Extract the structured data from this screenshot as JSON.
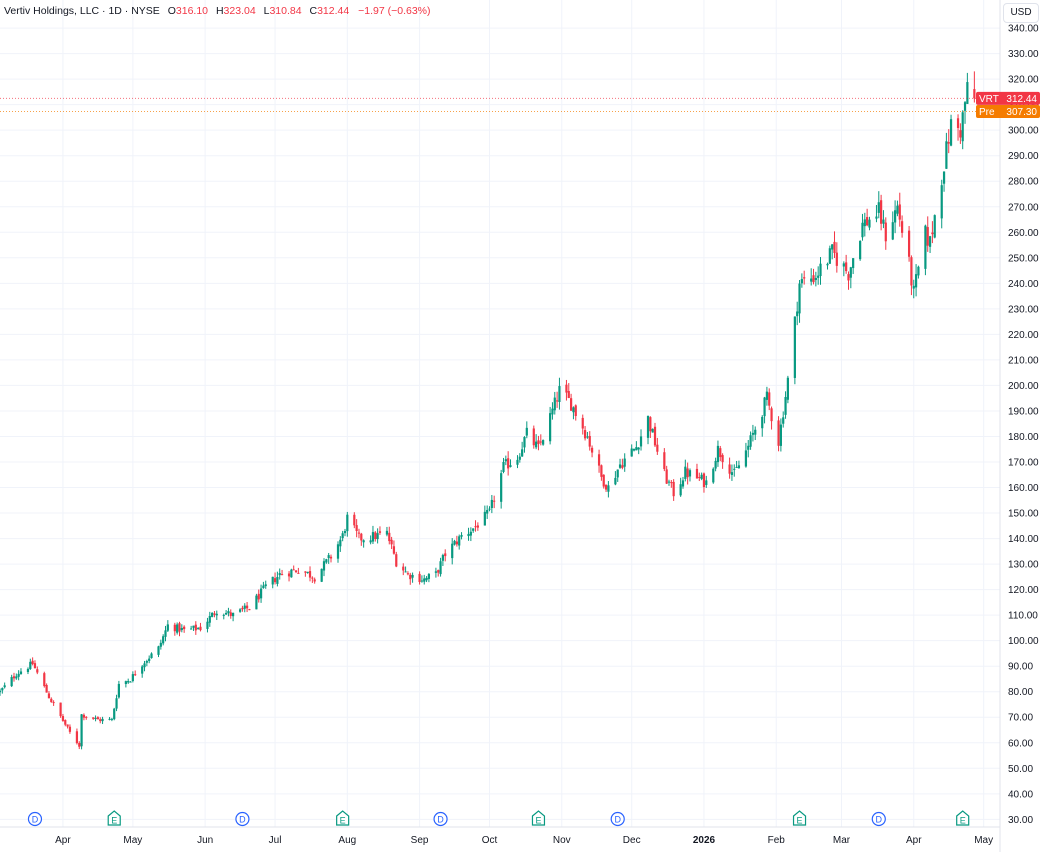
{
  "legend": {
    "title": "Vertiv Holdings, LLC · 1D · NYSE",
    "open_label": "O",
    "open": "316.10",
    "high_label": "H",
    "high": "323.04",
    "low_label": "L",
    "low": "310.84",
    "close_label": "C",
    "close": "312.44",
    "change": "−1.97 (−0.63%)"
  },
  "currency": "USD",
  "colors": {
    "up": "#089981",
    "down": "#f23645",
    "last": "#f23645",
    "pre": "#f57c00",
    "event": "#2962ff",
    "earnings": "#089981"
  },
  "price_tags": [
    {
      "label": "VRT",
      "value": "312.44",
      "color": "#f23645"
    },
    {
      "label": "Pre",
      "value": "307.30",
      "color": "#f57c00"
    }
  ],
  "events": [
    {
      "type": "D",
      "date": "2025-03-20"
    },
    {
      "type": "E",
      "date": "2025-04-23"
    },
    {
      "type": "D",
      "date": "2025-06-17"
    },
    {
      "type": "E",
      "date": "2025-07-30"
    },
    {
      "type": "D",
      "date": "2025-09-10"
    },
    {
      "type": "E",
      "date": "2025-10-22"
    },
    {
      "type": "D",
      "date": "2025-11-25"
    },
    {
      "type": "E",
      "date": "2026-02-11"
    },
    {
      "type": "D",
      "date": "2026-03-17"
    },
    {
      "type": "E",
      "date": "2026-04-22"
    }
  ],
  "chart_data": {
    "type": "candlestick",
    "title": "Vertiv Holdings, LLC · 1D · NYSE",
    "x_tick_labels": [
      "Apr",
      "May",
      "Jun",
      "Jul",
      "Aug",
      "Sep",
      "Oct",
      "Nov",
      "Dec",
      "2026",
      "Feb",
      "Mar",
      "Apr",
      "May"
    ],
    "y_tick_labels": [
      "30.00",
      "40.00",
      "50.00",
      "60.00",
      "70.00",
      "80.00",
      "90.00",
      "100.00",
      "110.00",
      "120.00",
      "130.00",
      "140.00",
      "150.00",
      "160.00",
      "170.00",
      "180.00",
      "190.00",
      "200.00",
      "210.00",
      "220.00",
      "230.00",
      "240.00",
      "250.00",
      "260.00",
      "270.00",
      "280.00",
      "290.00",
      "300.00",
      "310.00",
      "320.00",
      "330.00",
      "340.00"
    ],
    "ylim": [
      27,
      351
    ],
    "xlim": [
      "2025-03-05",
      "2026-05-08"
    ],
    "grid": true,
    "last_price": 312.44,
    "premarket_price": 307.3,
    "waypoints": [
      [
        "2025-03-05",
        80
      ],
      [
        "2025-03-12",
        87
      ],
      [
        "2025-03-19",
        91
      ],
      [
        "2025-03-26",
        78
      ],
      [
        "2025-04-04",
        64
      ],
      [
        "2025-04-08",
        59
      ],
      [
        "2025-04-09",
        71
      ],
      [
        "2025-04-16",
        69
      ],
      [
        "2025-04-22",
        69
      ],
      [
        "2025-04-25",
        83
      ],
      [
        "2025-04-30",
        85
      ],
      [
        "2025-05-05",
        91
      ],
      [
        "2025-05-12",
        97
      ],
      [
        "2025-05-16",
        106
      ],
      [
        "2025-05-23",
        104
      ],
      [
        "2025-05-30",
        105
      ],
      [
        "2025-06-06",
        112
      ],
      [
        "2025-06-13",
        110
      ],
      [
        "2025-06-20",
        113
      ],
      [
        "2025-06-27",
        121
      ],
      [
        "2025-07-03",
        126
      ],
      [
        "2025-07-11",
        128
      ],
      [
        "2025-07-18",
        125
      ],
      [
        "2025-07-25",
        133
      ],
      [
        "2025-07-30",
        141
      ],
      [
        "2025-08-01",
        148
      ],
      [
        "2025-08-06",
        140
      ],
      [
        "2025-08-13",
        141
      ],
      [
        "2025-08-18",
        142
      ],
      [
        "2025-08-22",
        131
      ],
      [
        "2025-08-27",
        126
      ],
      [
        "2025-09-03",
        124
      ],
      [
        "2025-09-08",
        126
      ],
      [
        "2025-09-12",
        134
      ],
      [
        "2025-09-19",
        141
      ],
      [
        "2025-09-24",
        144
      ],
      [
        "2025-10-01",
        150
      ],
      [
        "2025-10-07",
        168
      ],
      [
        "2025-10-13",
        172
      ],
      [
        "2025-10-17",
        181
      ],
      [
        "2025-10-22",
        175
      ],
      [
        "2025-10-28",
        190
      ],
      [
        "2025-10-31",
        198
      ],
      [
        "2025-11-05",
        193
      ],
      [
        "2025-11-12",
        180
      ],
      [
        "2025-11-18",
        164
      ],
      [
        "2025-11-21",
        160
      ],
      [
        "2025-11-26",
        169
      ],
      [
        "2025-12-03",
        176
      ],
      [
        "2025-12-08",
        187
      ],
      [
        "2025-12-15",
        165
      ],
      [
        "2025-12-19",
        158
      ],
      [
        "2025-12-24",
        166
      ],
      [
        "2026-01-02",
        162
      ],
      [
        "2026-01-07",
        175
      ],
      [
        "2026-01-14",
        165
      ],
      [
        "2026-01-20",
        176
      ],
      [
        "2026-01-28",
        195
      ],
      [
        "2026-02-02",
        178
      ],
      [
        "2026-02-06",
        202
      ],
      [
        "2026-02-11",
        240
      ],
      [
        "2026-02-18",
        243
      ],
      [
        "2026-02-25",
        252
      ],
      [
        "2026-03-04",
        244
      ],
      [
        "2026-03-10",
        263
      ],
      [
        "2026-03-17",
        268
      ],
      [
        "2026-03-20",
        259
      ],
      [
        "2026-03-25",
        270
      ],
      [
        "2026-03-30",
        247
      ],
      [
        "2026-04-01",
        236
      ],
      [
        "2026-04-06",
        259
      ],
      [
        "2026-04-08",
        256
      ],
      [
        "2026-04-13",
        282
      ],
      [
        "2026-04-17",
        302
      ],
      [
        "2026-04-21",
        300
      ],
      [
        "2026-04-24",
        316
      ],
      [
        "2026-04-27",
        312.44
      ]
    ]
  }
}
